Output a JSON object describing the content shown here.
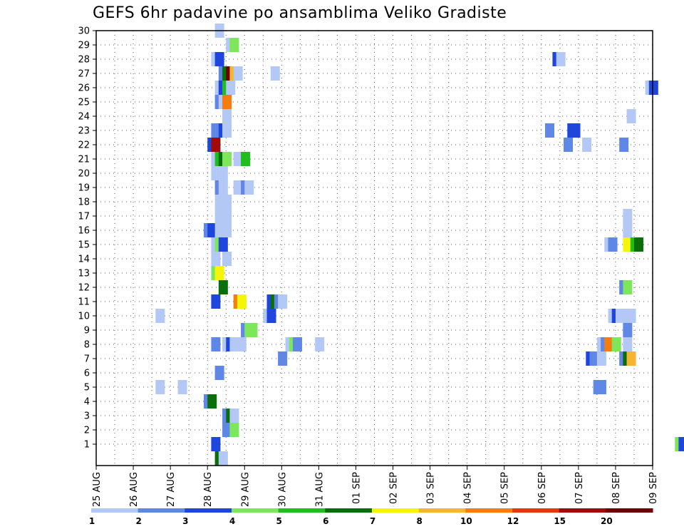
{
  "title": "GEFS 6hr padavine po ansamblima Veliko Gradiste",
  "chart_data": {
    "type": "heatmap",
    "title": "GEFS 6hr padavine po ansamblima Veliko Gradiste",
    "x_tick_labels": [
      "25 AUG",
      "26 AUG",
      "27 AUG",
      "28 AUG",
      "29 AUG",
      "30 AUG",
      "31 AUG",
      "01 SEP",
      "02 SEP",
      "03 SEP",
      "04 SEP",
      "05 SEP",
      "06 SEP",
      "07 SEP",
      "08 SEP",
      "09 SEP"
    ],
    "x_range": [
      "25 AUG 00Z",
      "09 SEP 00Z"
    ],
    "y_tick_labels": [
      "1",
      "2",
      "3",
      "4",
      "5",
      "6",
      "7",
      "8",
      "9",
      "10",
      "11",
      "12",
      "13",
      "14",
      "15",
      "16",
      "17",
      "18",
      "19",
      "20",
      "21",
      "22",
      "23",
      "24",
      "25",
      "26",
      "27",
      "28",
      "29",
      "30"
    ],
    "y_range": [
      0,
      30
    ],
    "step_hours": 6,
    "grid": "dotted",
    "colorbar": {
      "levels": [
        "1",
        "2",
        "3",
        "4",
        "5",
        "6",
        "7",
        "8",
        "10",
        "12",
        "15",
        "20"
      ],
      "colors": [
        "#b4c8f5",
        "#5f87e6",
        "#1e46dc",
        "#7ee65a",
        "#1ebe1e",
        "#0a6e0a",
        "#f5f50a",
        "#f5b432",
        "#f57d0f",
        "#e6370f",
        "#a00a0a",
        "#6e0000"
      ]
    },
    "cells": [
      {
        "member": 0,
        "t": 32,
        "v": 6
      },
      {
        "member": 0,
        "t": 33,
        "v": 1
      },
      {
        "member": 1,
        "t": 31,
        "v": 3
      },
      {
        "member": 1,
        "t": 156,
        "v": 4
      },
      {
        "member": 1,
        "t": 157,
        "v": 3
      },
      {
        "member": 2,
        "t": 34,
        "v": 2
      },
      {
        "member": 2,
        "t": 35,
        "v": 2
      },
      {
        "member": 2,
        "t": 36,
        "v": 4
      },
      {
        "member": 3,
        "t": 34,
        "v": 2
      },
      {
        "member": 3,
        "t": 35,
        "v": 6
      },
      {
        "member": 3,
        "t": 36,
        "v": 1
      },
      {
        "member": 4,
        "t": 29,
        "v": 2
      },
      {
        "member": 4,
        "t": 30,
        "v": 6
      },
      {
        "member": 5,
        "t": 16,
        "v": 1
      },
      {
        "member": 5,
        "t": 22,
        "v": 1
      },
      {
        "member": 5,
        "t": 134,
        "v": 2
      },
      {
        "member": 5,
        "t": 135,
        "v": 2
      },
      {
        "member": 6,
        "t": 32,
        "v": 2
      },
      {
        "member": 7,
        "t": 49,
        "v": 2
      },
      {
        "member": 7,
        "t": 132,
        "v": 3
      },
      {
        "member": 7,
        "t": 133,
        "v": 2
      },
      {
        "member": 7,
        "t": 134,
        "v": 2
      },
      {
        "member": 7,
        "t": 135,
        "v": 1
      },
      {
        "member": 7,
        "t": 141,
        "v": 2
      },
      {
        "member": 7,
        "t": 142,
        "v": 6
      },
      {
        "member": 7,
        "t": 143,
        "v": 8
      },
      {
        "member": 8,
        "t": 31,
        "v": 2
      },
      {
        "member": 8,
        "t": 34,
        "v": 1
      },
      {
        "member": 8,
        "t": 35,
        "v": 3
      },
      {
        "member": 8,
        "t": 36,
        "v": 1
      },
      {
        "member": 8,
        "t": 38,
        "v": 1
      },
      {
        "member": 8,
        "t": 51,
        "v": 1
      },
      {
        "member": 8,
        "t": 52,
        "v": 4
      },
      {
        "member": 8,
        "t": 53,
        "v": 2
      },
      {
        "member": 8,
        "t": 59,
        "v": 1
      },
      {
        "member": 8,
        "t": 135,
        "v": 1
      },
      {
        "member": 8,
        "t": 136,
        "v": 2
      },
      {
        "member": 8,
        "t": 137,
        "v": 10
      },
      {
        "member": 8,
        "t": 138,
        "v": 10
      },
      {
        "member": 8,
        "t": 139,
        "v": 4
      },
      {
        "member": 8,
        "t": 142,
        "v": 1
      },
      {
        "member": 9,
        "t": 39,
        "v": 2
      },
      {
        "member": 9,
        "t": 40,
        "v": 4
      },
      {
        "member": 9,
        "t": 41,
        "v": 4
      },
      {
        "member": 9,
        "t": 142,
        "v": 2
      },
      {
        "member": 10,
        "t": 16,
        "v": 1
      },
      {
        "member": 10,
        "t": 45,
        "v": 1
      },
      {
        "member": 10,
        "t": 46,
        "v": 3
      },
      {
        "member": 10,
        "t": 138,
        "v": 1
      },
      {
        "member": 10,
        "t": 139,
        "v": 3
      },
      {
        "member": 10,
        "t": 140,
        "v": 1
      },
      {
        "member": 10,
        "t": 142,
        "v": 1
      },
      {
        "member": 10,
        "t": 143,
        "v": 1
      },
      {
        "member": 11,
        "t": 31,
        "v": 3
      },
      {
        "member": 11,
        "t": 37,
        "v": 10
      },
      {
        "member": 11,
        "t": 38,
        "v": 7
      },
      {
        "member": 11,
        "t": 46,
        "v": 3
      },
      {
        "member": 11,
        "t": 47,
        "v": 6
      },
      {
        "member": 11,
        "t": 48,
        "v": 2
      },
      {
        "member": 11,
        "t": 49,
        "v": 1
      },
      {
        "member": 12,
        "t": 33,
        "v": 6
      },
      {
        "member": 12,
        "t": 141,
        "v": 2
      },
      {
        "member": 12,
        "t": 142,
        "v": 4
      },
      {
        "member": 13,
        "t": 31,
        "v": 4
      },
      {
        "member": 13,
        "t": 32,
        "v": 7
      },
      {
        "member": 14,
        "t": 31,
        "v": 1
      },
      {
        "member": 14,
        "t": 34,
        "v": 1
      },
      {
        "member": 15,
        "t": 31,
        "v": 1
      },
      {
        "member": 15,
        "t": 32,
        "v": 4
      },
      {
        "member": 15,
        "t": 33,
        "v": 3
      },
      {
        "member": 15,
        "t": 137,
        "v": 1
      },
      {
        "member": 15,
        "t": 138,
        "v": 2
      },
      {
        "member": 15,
        "t": 142,
        "v": 7
      },
      {
        "member": 15,
        "t": 144,
        "v": 5
      },
      {
        "member": 15,
        "t": 145,
        "v": 6
      },
      {
        "member": 16,
        "t": 29,
        "v": 2
      },
      {
        "member": 16,
        "t": 30,
        "v": 3
      },
      {
        "member": 16,
        "t": 32,
        "v": 1
      },
      {
        "member": 16,
        "t": 33,
        "v": 1
      },
      {
        "member": 16,
        "t": 34,
        "v": 1
      },
      {
        "member": 16,
        "t": 142,
        "v": 1
      },
      {
        "member": 17,
        "t": 32,
        "v": 1
      },
      {
        "member": 17,
        "t": 33,
        "v": 1
      },
      {
        "member": 17,
        "t": 34,
        "v": 1
      },
      {
        "member": 17,
        "t": 142,
        "v": 1
      },
      {
        "member": 18,
        "t": 32,
        "v": 1
      },
      {
        "member": 18,
        "t": 33,
        "v": 1
      },
      {
        "member": 18,
        "t": 34,
        "v": 1
      },
      {
        "member": 19,
        "t": 32,
        "v": 2
      },
      {
        "member": 19,
        "t": 33,
        "v": 1
      },
      {
        "member": 19,
        "t": 37,
        "v": 1
      },
      {
        "member": 19,
        "t": 39,
        "v": 2
      },
      {
        "member": 19,
        "t": 40,
        "v": 1
      },
      {
        "member": 20,
        "t": 31,
        "v": 1
      },
      {
        "member": 20,
        "t": 32,
        "v": 1
      },
      {
        "member": 20,
        "t": 33,
        "v": 1
      },
      {
        "member": 21,
        "t": 31,
        "v": 1
      },
      {
        "member": 21,
        "t": 32,
        "v": 5
      },
      {
        "member": 21,
        "t": 33,
        "v": 6
      },
      {
        "member": 21,
        "t": 34,
        "v": 4
      },
      {
        "member": 21,
        "t": 37,
        "v": 1
      },
      {
        "member": 21,
        "t": 39,
        "v": 5
      },
      {
        "member": 22,
        "t": 30,
        "v": 3
      },
      {
        "member": 22,
        "t": 31,
        "v": 15
      },
      {
        "member": 22,
        "t": 126,
        "v": 2
      },
      {
        "member": 22,
        "t": 131,
        "v": 1
      },
      {
        "member": 22,
        "t": 141,
        "v": 2
      },
      {
        "member": 23,
        "t": 31,
        "v": 2
      },
      {
        "member": 23,
        "t": 32,
        "v": 2
      },
      {
        "member": 23,
        "t": 33,
        "v": 3
      },
      {
        "member": 23,
        "t": 34,
        "v": 1
      },
      {
        "member": 23,
        "t": 121,
        "v": 2
      },
      {
        "member": 23,
        "t": 127,
        "v": 3
      },
      {
        "member": 23,
        "t": 128,
        "v": 3
      },
      {
        "member": 24,
        "t": 34,
        "v": 1
      },
      {
        "member": 24,
        "t": 143,
        "v": 1
      },
      {
        "member": 25,
        "t": 32,
        "v": 2
      },
      {
        "member": 25,
        "t": 33,
        "v": 1
      },
      {
        "member": 25,
        "t": 34,
        "v": 10
      },
      {
        "member": 26,
        "t": 32,
        "v": 1
      },
      {
        "member": 26,
        "t": 33,
        "v": 3
      },
      {
        "member": 26,
        "t": 34,
        "v": 5
      },
      {
        "member": 26,
        "t": 35,
        "v": 1
      },
      {
        "member": 26,
        "t": 148,
        "v": 1
      },
      {
        "member": 26,
        "t": 149,
        "v": 3
      },
      {
        "member": 27,
        "t": 33,
        "v": 2
      },
      {
        "member": 27,
        "t": 34,
        "v": 6
      },
      {
        "member": 27,
        "t": 35,
        "v": 20
      },
      {
        "member": 27,
        "t": 36,
        "v": 8
      },
      {
        "member": 27,
        "t": 37,
        "v": 1
      },
      {
        "member": 27,
        "t": 47,
        "v": 1
      },
      {
        "member": 28,
        "t": 31,
        "v": 1
      },
      {
        "member": 28,
        "t": 32,
        "v": 3
      },
      {
        "member": 28,
        "t": 123,
        "v": 3
      },
      {
        "member": 28,
        "t": 124,
        "v": 1
      },
      {
        "member": 29,
        "t": 35,
        "v": 1
      },
      {
        "member": 29,
        "t": 36,
        "v": 4
      },
      {
        "member": 30,
        "t": 32,
        "v": 1
      }
    ]
  }
}
